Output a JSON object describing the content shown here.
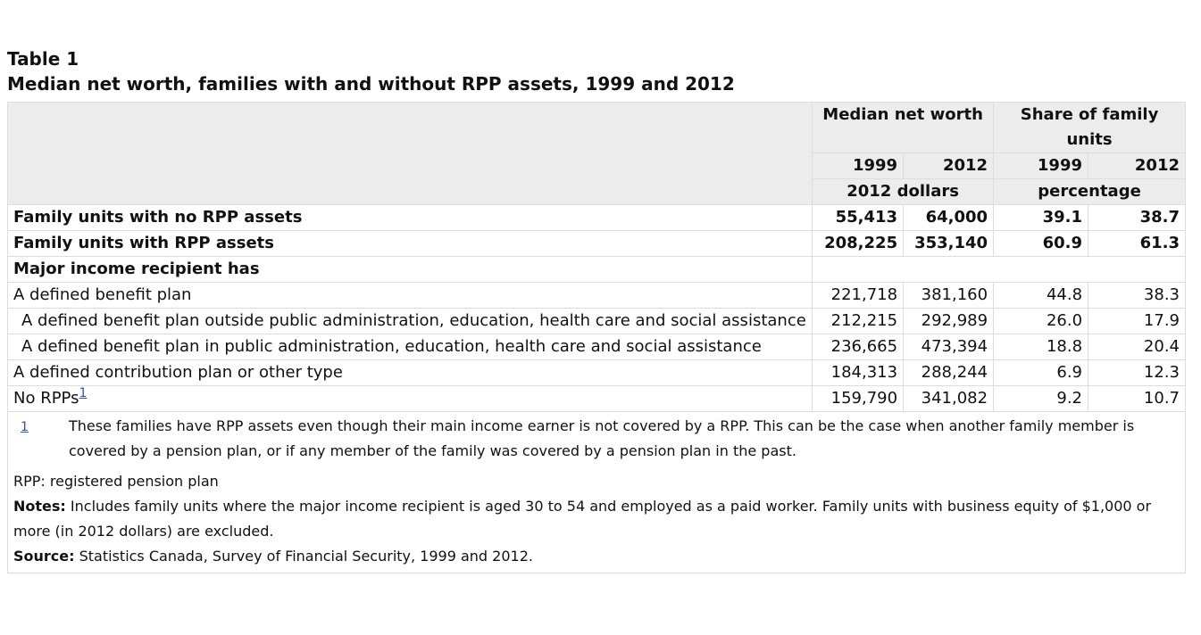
{
  "title": {
    "label": "Table 1",
    "caption": "Median net worth, families with and without RPP assets, 1999 and 2012"
  },
  "table": {
    "header": {
      "groups": [
        "Median net worth",
        "Share of family units"
      ],
      "years": [
        "1999",
        "2012",
        "1999",
        "2012"
      ],
      "units": [
        "2012 dollars",
        "percentage"
      ]
    },
    "rows": [
      {
        "label": "Family units with no RPP assets",
        "cells": [
          "55,413",
          "64,000",
          "39.1",
          "38.7"
        ]
      },
      {
        "label": "Family units with RPP assets",
        "cells": [
          "208,225",
          "353,140",
          "60.9",
          "61.3"
        ]
      },
      {
        "label": "Major income recipient has"
      },
      {
        "label": "A defined benefit plan",
        "cells": [
          "221,718",
          "381,160",
          "44.8",
          "38.3"
        ]
      },
      {
        "label": "A defined benefit plan outside public administration, education, health care and social assistance",
        "cells": [
          "212,215",
          "292,989",
          "26.0",
          "17.9"
        ]
      },
      {
        "label": "A defined benefit plan in public administration, education, health care and social assistance",
        "cells": [
          "236,665",
          "473,394",
          "18.8",
          "20.4"
        ]
      },
      {
        "label": "A defined contribution plan or other type",
        "cells": [
          "184,313",
          "288,244",
          "6.9",
          "12.3"
        ]
      },
      {
        "label": "No RPPs",
        "note": "1",
        "cells": [
          "159,790",
          "341,082",
          "9.2",
          "10.7"
        ]
      }
    ]
  },
  "footnotes": [
    {
      "marker": "1",
      "text": "These families have RPP assets even though their main income earner is not covered by a RPP. This can be the case when another family member is covered by a pension plan, or if any member of the family was covered by a pension plan in the past."
    }
  ],
  "notes": {
    "abbreviation": "RPP: registered pension plan",
    "notes_label": "Notes:",
    "notes_text": "Includes family units where the major income recipient is aged 30 to 54 and employed as a paid worker. Family units with business equity of $1,000 or more (in 2012 dollars) are excluded.",
    "source_label": "Source:",
    "source_text": "Statistics Canada, Survey of Financial Security, 1999 and 2012."
  }
}
